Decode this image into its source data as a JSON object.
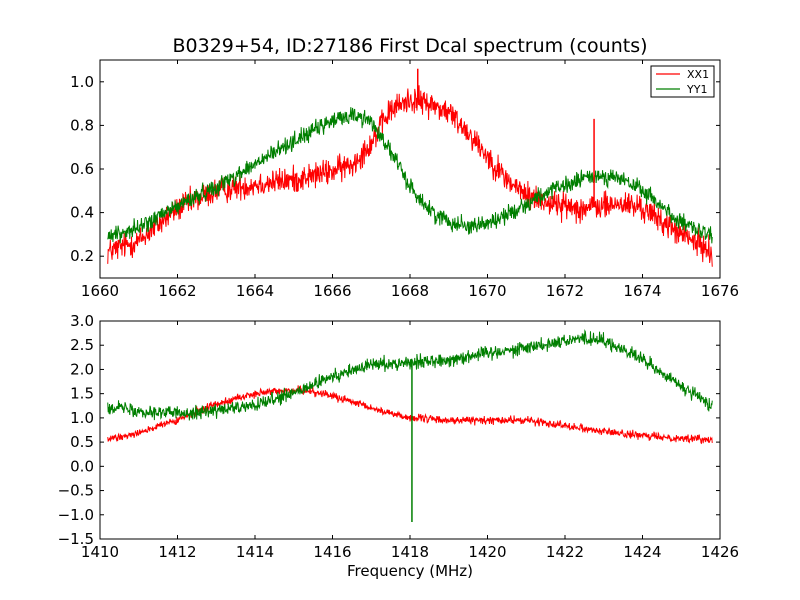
{
  "title": "B0329+54, ID:27186 First Dcal spectrum (counts)",
  "colors": {
    "XX1": "#ff0000",
    "YY1": "#007f00"
  },
  "chart_data": [
    {
      "type": "line",
      "xlim": [
        1660,
        1676
      ],
      "ylim": [
        0.1,
        1.1
      ],
      "xticks": [
        1660,
        1662,
        1664,
        1666,
        1668,
        1670,
        1672,
        1674,
        1676
      ],
      "yticks": [
        0.2,
        0.4,
        0.6,
        0.8,
        1.0
      ],
      "xtick_labels": [
        "1660",
        "1662",
        "1664",
        "1666",
        "1668",
        "1670",
        "1672",
        "1674",
        "1676"
      ],
      "ytick_labels": [
        "0.2",
        "0.4",
        "0.6",
        "0.8",
        "1.0"
      ],
      "xlabel": "",
      "ylabel": "",
      "legend": {
        "placement": "top-right",
        "entries": [
          "XX1",
          "YY1"
        ]
      },
      "grid": false,
      "series": [
        {
          "name": "XX1",
          "color": "#ff0000",
          "noise": 0.03,
          "x": [
            1660.2,
            1661,
            1662,
            1663,
            1664,
            1665,
            1666,
            1666.5,
            1667,
            1667.5,
            1668,
            1668.5,
            1669,
            1669.5,
            1670,
            1670.5,
            1671,
            1671.5,
            1672,
            1672.5,
            1673,
            1673.5,
            1674,
            1674.5,
            1675,
            1675.8
          ],
          "y": [
            0.22,
            0.27,
            0.42,
            0.5,
            0.53,
            0.55,
            0.59,
            0.62,
            0.72,
            0.87,
            0.92,
            0.9,
            0.86,
            0.77,
            0.66,
            0.55,
            0.48,
            0.45,
            0.43,
            0.42,
            0.43,
            0.44,
            0.42,
            0.36,
            0.3,
            0.22
          ]
        },
        {
          "name": "YY1",
          "color": "#007f00",
          "noise": 0.02,
          "x": [
            1660.2,
            1661,
            1662,
            1663,
            1664,
            1665,
            1666,
            1666.5,
            1667,
            1667.5,
            1668,
            1668.5,
            1669,
            1669.5,
            1670,
            1670.5,
            1671,
            1671.5,
            1672,
            1672.5,
            1673,
            1673.5,
            1674,
            1674.5,
            1675,
            1675.8
          ],
          "y": [
            0.29,
            0.33,
            0.43,
            0.52,
            0.62,
            0.73,
            0.82,
            0.85,
            0.82,
            0.68,
            0.52,
            0.41,
            0.36,
            0.34,
            0.35,
            0.39,
            0.44,
            0.49,
            0.52,
            0.56,
            0.57,
            0.55,
            0.5,
            0.43,
            0.35,
            0.29
          ]
        }
      ],
      "spikes": [
        {
          "series": "XX1",
          "x": 1672.75,
          "y": 0.83
        },
        {
          "series": "XX1",
          "x": 1668.2,
          "y": 1.06
        }
      ]
    },
    {
      "type": "line",
      "xlim": [
        1410,
        1426
      ],
      "ylim": [
        -1.5,
        3.0
      ],
      "xticks": [
        1410,
        1412,
        1414,
        1416,
        1418,
        1420,
        1422,
        1424,
        1426
      ],
      "yticks": [
        -1.5,
        -1.0,
        -0.5,
        0.0,
        0.5,
        1.0,
        1.5,
        2.0,
        2.5,
        3.0
      ],
      "xtick_labels": [
        "1410",
        "1412",
        "1414",
        "1416",
        "1418",
        "1420",
        "1422",
        "1424",
        "1426"
      ],
      "ytick_labels": [
        "−1.5",
        "−1.0",
        "−0.5",
        "0.0",
        "0.5",
        "1.0",
        "1.5",
        "2.0",
        "2.5",
        "3.0"
      ],
      "xlabel": "Frequency (MHz)",
      "ylabel": "",
      "grid": false,
      "series": [
        {
          "name": "XX1",
          "color": "#ff0000",
          "noise": 0.04,
          "x": [
            1410.2,
            1411,
            1412,
            1413,
            1414,
            1415,
            1415.5,
            1416,
            1417,
            1418,
            1419,
            1420,
            1420.5,
            1421,
            1422,
            1423,
            1424,
            1425,
            1425.8
          ],
          "y": [
            0.55,
            0.7,
            0.95,
            1.3,
            1.5,
            1.58,
            1.55,
            1.45,
            1.2,
            1.0,
            0.95,
            0.95,
            0.95,
            0.95,
            0.85,
            0.72,
            0.63,
            0.58,
            0.55
          ]
        },
        {
          "name": "YY1",
          "color": "#007f00",
          "noise": 0.07,
          "x": [
            1410.2,
            1411,
            1412,
            1413,
            1414,
            1415,
            1416,
            1417,
            1418,
            1419,
            1420,
            1420.5,
            1421,
            1422,
            1422.5,
            1423,
            1424,
            1425,
            1425.8
          ],
          "y": [
            1.25,
            1.15,
            1.1,
            1.15,
            1.25,
            1.5,
            1.85,
            2.1,
            2.15,
            2.2,
            2.35,
            2.4,
            2.45,
            2.6,
            2.65,
            2.6,
            2.2,
            1.65,
            1.25
          ]
        }
      ],
      "spikes": [
        {
          "series": "YY1",
          "x": 1418.05,
          "y": -1.15
        }
      ]
    }
  ]
}
